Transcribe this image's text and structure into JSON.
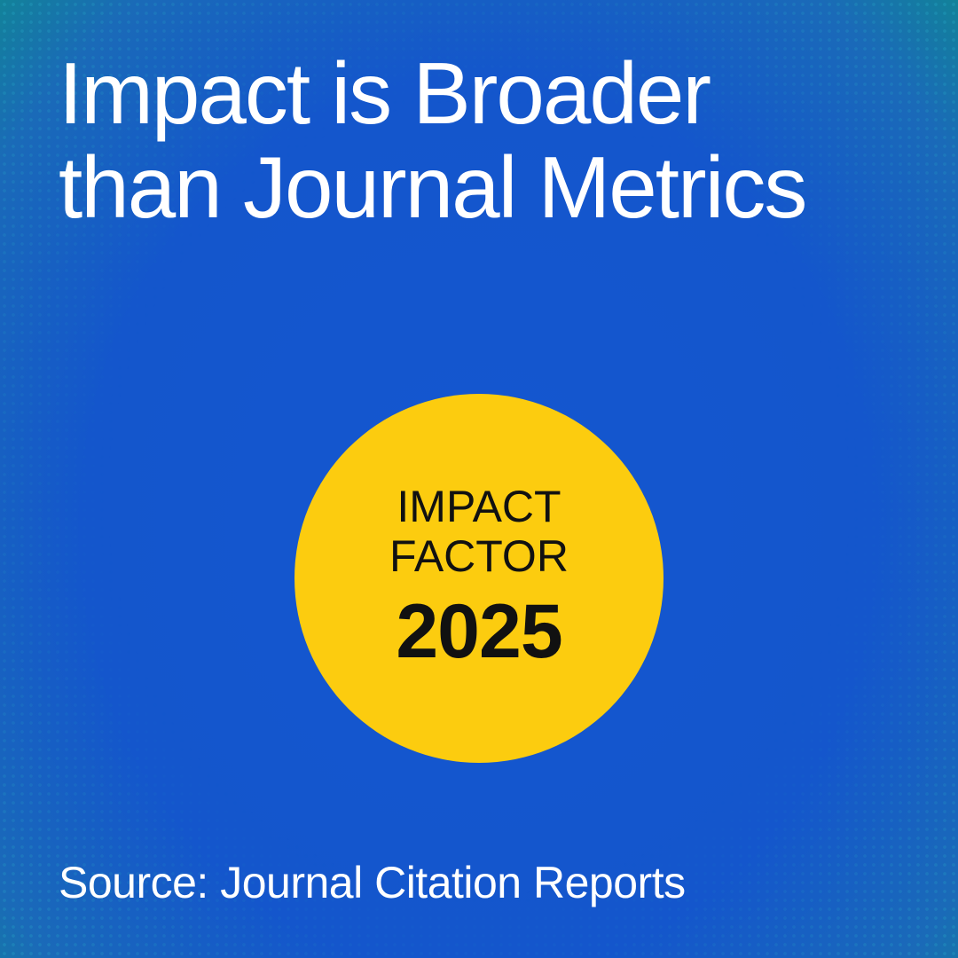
{
  "title": "Impact is Broader than Journal Metrics",
  "badge": {
    "line1": "IMPACT",
    "line2": "FACTOR",
    "year": "2025"
  },
  "source": "Source: Journal Citation Reports"
}
